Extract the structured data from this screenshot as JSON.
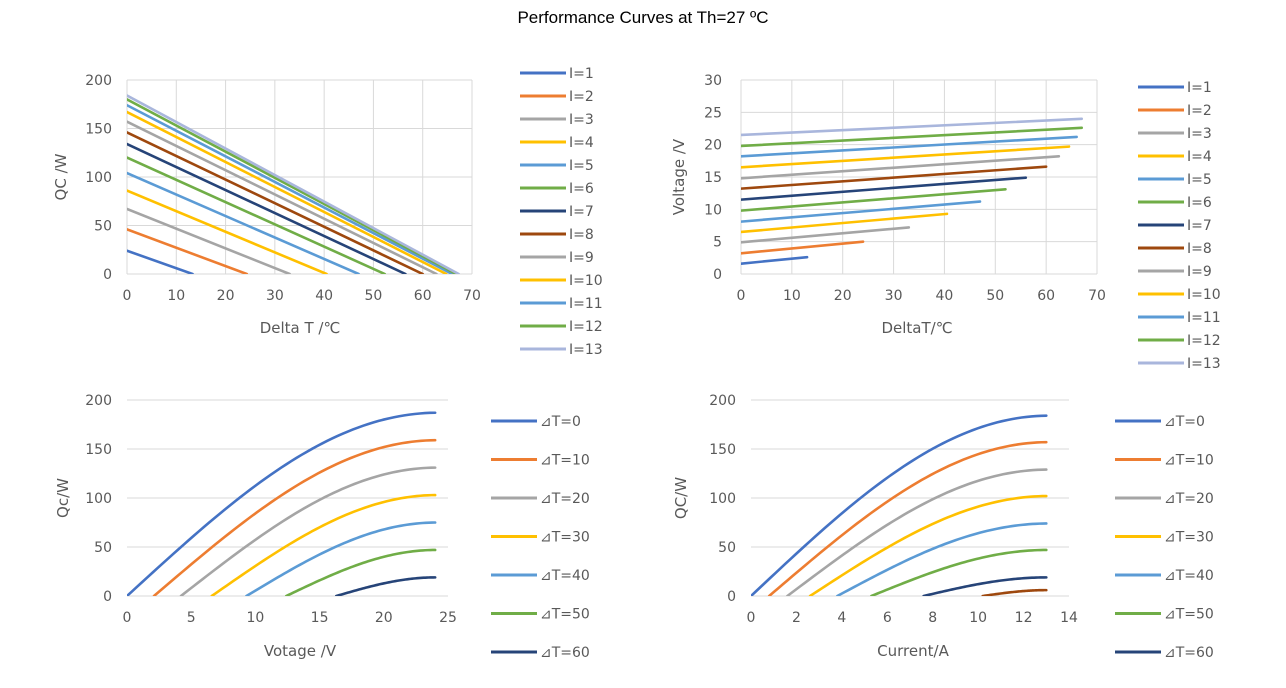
{
  "title": "Performance Curves at Th=27 ºC",
  "chart_data": [
    {
      "id": "qc-vs-deltat",
      "type": "line",
      "xlabel": "Delta T /℃",
      "ylabel": "QC /W",
      "xlim": [
        0,
        70
      ],
      "xticks": [
        0,
        10,
        20,
        30,
        40,
        50,
        60,
        70
      ],
      "ylim": [
        0,
        200
      ],
      "yticks": [
        0,
        50,
        100,
        150,
        200
      ],
      "grid": "both",
      "legend": "right",
      "series": [
        {
          "name": "I=1",
          "color": "#4472C4",
          "x": [
            0,
            13.3
          ],
          "y": [
            24,
            0
          ]
        },
        {
          "name": "I=2",
          "color": "#ED7D31",
          "x": [
            0,
            24.3
          ],
          "y": [
            46,
            0
          ]
        },
        {
          "name": "I=3",
          "color": "#A5A5A5",
          "x": [
            0,
            33
          ],
          "y": [
            67,
            0
          ]
        },
        {
          "name": "I=4",
          "color": "#FFC000",
          "x": [
            0,
            40.5
          ],
          "y": [
            86,
            0
          ]
        },
        {
          "name": "I=5",
          "color": "#5B9BD5",
          "x": [
            0,
            47
          ],
          "y": [
            104,
            0
          ]
        },
        {
          "name": "I=6",
          "color": "#70AD47",
          "x": [
            0,
            52.3
          ],
          "y": [
            120,
            0
          ]
        },
        {
          "name": "I=7",
          "color": "#264478",
          "x": [
            0,
            56.5
          ],
          "y": [
            134,
            0
          ]
        },
        {
          "name": "I=8",
          "color": "#9E480E",
          "x": [
            0,
            60
          ],
          "y": [
            146,
            0
          ]
        },
        {
          "name": "I=9",
          "color": "#A5A5A5",
          "x": [
            0,
            62.8
          ],
          "y": [
            157,
            0
          ]
        },
        {
          "name": "I=10",
          "color": "#FFC000",
          "x": [
            0,
            64.8
          ],
          "y": [
            167,
            0
          ]
        },
        {
          "name": "I=11",
          "color": "#5B9BD5",
          "x": [
            0,
            66
          ],
          "y": [
            174,
            0
          ]
        },
        {
          "name": "I=12",
          "color": "#70AD47",
          "x": [
            0,
            66.8
          ],
          "y": [
            180,
            0
          ]
        },
        {
          "name": "I=13",
          "color": "#A9B6DC",
          "x": [
            0,
            67.3
          ],
          "y": [
            184,
            0
          ]
        }
      ]
    },
    {
      "id": "voltage-vs-deltat",
      "type": "line",
      "xlabel": "DeltaT/℃",
      "ylabel": "Voltage /V",
      "xlim": [
        0,
        70
      ],
      "xticks": [
        0,
        10,
        20,
        30,
        40,
        50,
        60,
        70
      ],
      "ylim": [
        0,
        30
      ],
      "yticks": [
        0,
        5,
        10,
        15,
        20,
        25,
        30
      ],
      "grid": "both",
      "legend": "right",
      "series": [
        {
          "name": "I=1",
          "color": "#4472C4",
          "x": [
            0,
            13
          ],
          "y": [
            1.6,
            2.6
          ]
        },
        {
          "name": "I=2",
          "color": "#ED7D31",
          "x": [
            0,
            24
          ],
          "y": [
            3.2,
            5.0
          ]
        },
        {
          "name": "I=3",
          "color": "#A5A5A5",
          "x": [
            0,
            33
          ],
          "y": [
            4.9,
            7.2
          ]
        },
        {
          "name": "I=4",
          "color": "#FFC000",
          "x": [
            0,
            40.5
          ],
          "y": [
            6.5,
            9.3
          ]
        },
        {
          "name": "I=5",
          "color": "#5B9BD5",
          "x": [
            0,
            47
          ],
          "y": [
            8.1,
            11.2
          ]
        },
        {
          "name": "I=6",
          "color": "#70AD47",
          "x": [
            0,
            52
          ],
          "y": [
            9.8,
            13.1
          ]
        },
        {
          "name": "I=7",
          "color": "#264478",
          "x": [
            0,
            56
          ],
          "y": [
            11.5,
            14.9
          ]
        },
        {
          "name": "I=8",
          "color": "#9E480E",
          "x": [
            0,
            60
          ],
          "y": [
            13.2,
            16.6
          ]
        },
        {
          "name": "I=9",
          "color": "#A5A5A5",
          "x": [
            0,
            62.5
          ],
          "y": [
            14.8,
            18.2
          ]
        },
        {
          "name": "I=10",
          "color": "#FFC000",
          "x": [
            0,
            64.5
          ],
          "y": [
            16.5,
            19.7
          ]
        },
        {
          "name": "I=11",
          "color": "#5B9BD5",
          "x": [
            0,
            66
          ],
          "y": [
            18.2,
            21.2
          ]
        },
        {
          "name": "I=12",
          "color": "#70AD47",
          "x": [
            0,
            67
          ],
          "y": [
            19.8,
            22.6
          ]
        },
        {
          "name": "I=13",
          "color": "#A9B6DC",
          "x": [
            0,
            67
          ],
          "y": [
            21.5,
            24
          ]
        }
      ]
    },
    {
      "id": "qc-vs-voltage",
      "type": "line",
      "xlabel": "Votage /V",
      "ylabel": "Qc/W",
      "xlim": [
        0,
        25
      ],
      "xticks": [
        0,
        5,
        10,
        15,
        20,
        25
      ],
      "ylim": [
        0,
        200
      ],
      "yticks": [
        0,
        50,
        100,
        150,
        200
      ],
      "grid": "horizontal",
      "legend": "right",
      "curve": {
        "xend": 24,
        "xend_offset_factor": 0.3
      },
      "series": [
        {
          "name": "⊿T=0",
          "color": "#4472C4",
          "x0": 0,
          "ymax": 187
        },
        {
          "name": "⊿T=10",
          "color": "#ED7D31",
          "x0": 2.1,
          "ymax": 159
        },
        {
          "name": "⊿T=20",
          "color": "#A5A5A5",
          "x0": 4.2,
          "ymax": 131
        },
        {
          "name": "⊿T=30",
          "color": "#FFC000",
          "x0": 6.6,
          "ymax": 103
        },
        {
          "name": "⊿T=40",
          "color": "#5B9BD5",
          "x0": 9.3,
          "ymax": 75
        },
        {
          "name": "⊿T=50",
          "color": "#70AD47",
          "x0": 12.4,
          "ymax": 47
        },
        {
          "name": "⊿T=60",
          "color": "#264478",
          "x0": 16.3,
          "ymax": 19
        }
      ]
    },
    {
      "id": "qc-vs-current",
      "type": "line",
      "xlabel": "Current/A",
      "ylabel": "QC/W",
      "xlim": [
        0,
        14
      ],
      "xticks": [
        0,
        2,
        4,
        6,
        8,
        10,
        12,
        14
      ],
      "ylim": [
        0,
        200
      ],
      "yticks": [
        0,
        50,
        100,
        150,
        200
      ],
      "grid": "horizontal",
      "legend": "right",
      "curve": {
        "xend": 13,
        "xend_offset_factor": 0.08
      },
      "series": [
        {
          "name": "⊿T=0",
          "color": "#4472C4",
          "x0": 0,
          "ymax": 184
        },
        {
          "name": "⊿T=10",
          "color": "#ED7D31",
          "x0": 0.8,
          "ymax": 157
        },
        {
          "name": "⊿T=20",
          "color": "#A5A5A5",
          "x0": 1.6,
          "ymax": 129
        },
        {
          "name": "⊿T=30",
          "color": "#FFC000",
          "x0": 2.6,
          "ymax": 102
        },
        {
          "name": "⊿T=40",
          "color": "#5B9BD5",
          "x0": 3.8,
          "ymax": 74
        },
        {
          "name": "⊿T=50",
          "color": "#70AD47",
          "x0": 5.3,
          "ymax": 47
        },
        {
          "name": "⊿T=60",
          "color": "#264478",
          "x0": 7.6,
          "ymax": 19
        },
        {
          "name": "",
          "color": "#9E480E",
          "x0": 10.2,
          "ymax": 6,
          "nolegend": true
        }
      ]
    }
  ]
}
